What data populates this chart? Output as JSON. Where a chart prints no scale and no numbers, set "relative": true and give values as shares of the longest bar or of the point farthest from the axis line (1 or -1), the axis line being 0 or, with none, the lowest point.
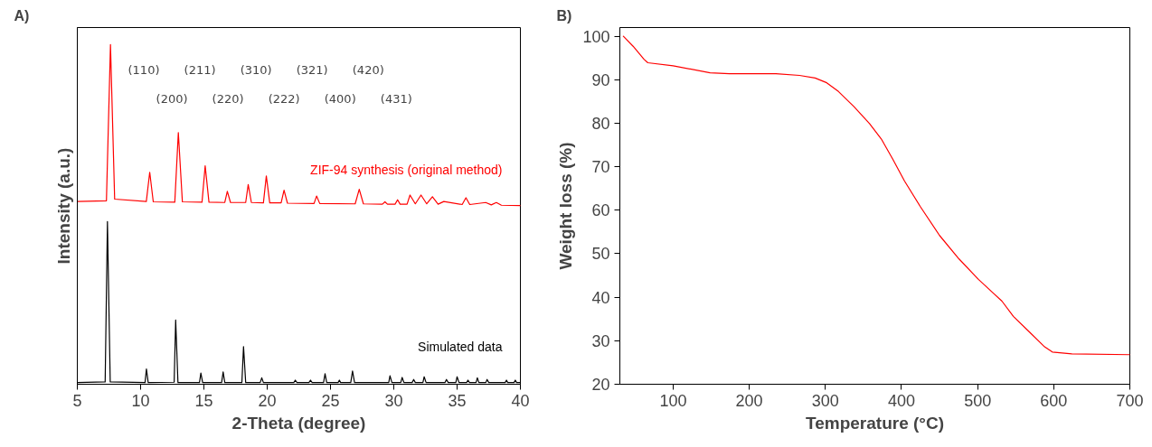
{
  "chart_data": [
    {
      "type": "line",
      "title": "A)",
      "xlabel": "2-Theta (degree)",
      "ylabel": "Intensity (a.u.)",
      "relative": true,
      "xlim": [
        5,
        40
      ],
      "xticks": [
        5,
        10,
        15,
        20,
        25,
        30,
        35,
        40
      ],
      "grid": false,
      "series": [
        {
          "name": "ZIF-94 synthesis (original method)",
          "color": "#ff0000",
          "x": [
            5,
            7.3,
            7.62,
            7.95,
            10.45,
            10.72,
            11.0,
            12.7,
            12.98,
            13.3,
            14.85,
            15.1,
            15.4,
            16.65,
            16.85,
            17.1,
            18.3,
            18.5,
            18.75,
            19.7,
            19.93,
            20.2,
            21.1,
            21.33,
            21.6,
            23.7,
            23.9,
            24.15,
            26.95,
            27.27,
            27.6,
            29.1,
            29.3,
            29.5,
            30.1,
            30.3,
            30.5,
            31.05,
            31.28,
            31.7,
            32.15,
            32.6,
            33.05,
            33.5,
            33.95,
            35.4,
            35.7,
            36.0,
            37.26,
            37.7,
            38.1,
            38.5,
            40
          ],
          "values": [
            0.538,
            0.54,
            1.0,
            0.545,
            0.538,
            0.624,
            0.537,
            0.536,
            0.741,
            0.537,
            0.536,
            0.643,
            0.536,
            0.535,
            0.568,
            0.535,
            0.535,
            0.588,
            0.535,
            0.534,
            0.613,
            0.534,
            0.534,
            0.571,
            0.533,
            0.532,
            0.554,
            0.532,
            0.531,
            0.574,
            0.531,
            0.53,
            0.537,
            0.53,
            0.53,
            0.543,
            0.53,
            0.53,
            0.557,
            0.531,
            0.557,
            0.531,
            0.552,
            0.53,
            0.538,
            0.529,
            0.549,
            0.529,
            0.535,
            0.528,
            0.535,
            0.527,
            0.526
          ]
        },
        {
          "name": "Simulated data",
          "color": "#000000",
          "x": [
            5,
            7.2,
            7.38,
            7.6,
            10.35,
            10.46,
            10.6,
            12.65,
            12.77,
            12.95,
            14.65,
            14.76,
            14.9,
            16.4,
            16.52,
            16.65,
            18.0,
            18.13,
            18.3,
            19.45,
            19.57,
            19.7,
            22.1,
            22.22,
            22.35,
            23.3,
            23.42,
            23.55,
            24.45,
            24.57,
            24.7,
            25.6,
            25.7,
            25.8,
            26.6,
            26.74,
            26.9,
            29.6,
            29.7,
            29.85,
            30.55,
            30.66,
            30.8,
            31.45,
            31.57,
            31.7,
            32.3,
            32.4,
            32.55,
            34.05,
            34.16,
            34.3,
            34.9,
            35.0,
            35.15,
            35.75,
            35.86,
            35.98,
            36.5,
            36.6,
            36.72,
            37.27,
            37.37,
            37.5,
            38.8,
            38.9,
            39.0,
            39.5,
            39.6,
            39.7,
            40
          ],
          "values": [
            0.005,
            0.007,
            0.479,
            0.007,
            0.005,
            0.045,
            0.005,
            0.006,
            0.189,
            0.005,
            0.005,
            0.033,
            0.005,
            0.005,
            0.036,
            0.005,
            0.005,
            0.111,
            0.005,
            0.005,
            0.019,
            0.005,
            0.005,
            0.012,
            0.005,
            0.005,
            0.012,
            0.005,
            0.005,
            0.031,
            0.005,
            0.005,
            0.012,
            0.005,
            0.005,
            0.039,
            0.005,
            0.005,
            0.025,
            0.005,
            0.005,
            0.02,
            0.005,
            0.005,
            0.014,
            0.005,
            0.005,
            0.022,
            0.005,
            0.005,
            0.014,
            0.005,
            0.005,
            0.022,
            0.005,
            0.005,
            0.012,
            0.005,
            0.005,
            0.019,
            0.005,
            0.005,
            0.014,
            0.005,
            0.005,
            0.012,
            0.005,
            0.005,
            0.012,
            0.005,
            0.005
          ]
        }
      ],
      "annotations": [
        "(110)",
        "(200)",
        "(211)",
        "(220)",
        "(310)",
        "(222)",
        "(321)",
        "(400)",
        "(420)",
        "(431)"
      ]
    },
    {
      "type": "line",
      "title": "B)",
      "xlabel": "Temperature (°C)",
      "ylabel": "Weight loss (%)",
      "xlim": [
        30,
        700
      ],
      "xticks": [
        100,
        200,
        300,
        400,
        500,
        600,
        700
      ],
      "ylim": [
        20,
        102
      ],
      "yticks": [
        20,
        30,
        40,
        50,
        60,
        70,
        80,
        90,
        100
      ],
      "grid": false,
      "series": [
        {
          "color": "#ff0000",
          "x": [
            34.6,
            47.4,
            61.7,
            66.8,
            100,
            148.5,
            174,
            235,
            266,
            286.5,
            301.8,
            317.2,
            337.6,
            358,
            373.4,
            388.7,
            404,
            424.5,
            450,
            475.6,
            501.1,
            519,
            532,
            547,
            567.6,
            588,
            598.2,
            623.8,
            700
          ],
          "values": [
            100,
            97.7,
            94.7,
            93.9,
            93.2,
            91.6,
            91.4,
            91.4,
            91.0,
            90.4,
            89.3,
            87.3,
            83.8,
            79.9,
            76.4,
            71.7,
            66.7,
            60.9,
            54.2,
            48.8,
            44.1,
            41.2,
            39.1,
            35.6,
            32.1,
            28.6,
            27.4,
            27.0,
            26.8
          ]
        }
      ]
    }
  ]
}
